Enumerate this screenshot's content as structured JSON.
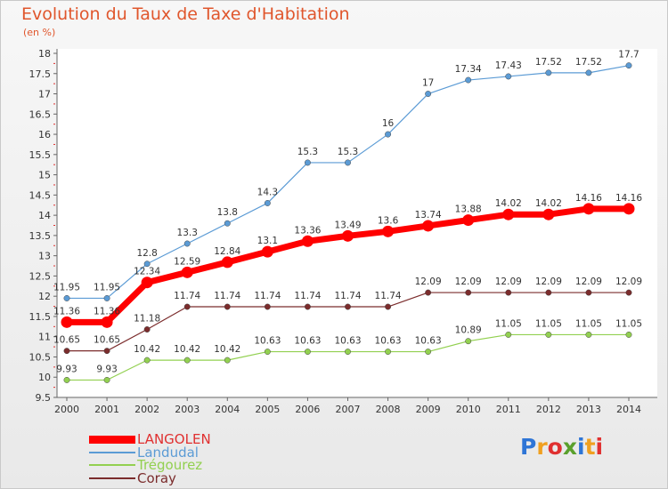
{
  "chart_data": {
    "type": "line",
    "title": "Evolution du Taux de Taxe d'Habitation",
    "subtitle": "(en %)",
    "x": [
      "2000",
      "2001",
      "2002",
      "2003",
      "2004",
      "2005",
      "2006",
      "2007",
      "2008",
      "2009",
      "2010",
      "2011",
      "2012",
      "2013",
      "2014"
    ],
    "ylim": [
      9.5,
      18
    ],
    "yticks": [
      "9.5",
      "10",
      "10.5",
      "11",
      "11.5",
      "12",
      "12.5",
      "13",
      "13.5",
      "14",
      "14.5",
      "15",
      "15.5",
      "16",
      "16.5",
      "17",
      "17.5",
      "18"
    ],
    "grid": false,
    "legend_position": "bottom-left",
    "series": [
      {
        "name": "LANGOLEN",
        "color": "#ff0000",
        "values": [
          11.36,
          11.36,
          12.34,
          12.59,
          12.84,
          13.1,
          13.36,
          13.49,
          13.6,
          13.74,
          13.88,
          14.02,
          14.02,
          14.16,
          14.16
        ],
        "labels": [
          "11.36",
          "11.36",
          "12.34",
          "12.59",
          "12.84",
          "13.1",
          "13.36",
          "13.49",
          "13.6",
          "13.74",
          "13.88",
          "14.02",
          "14.02",
          "14.16",
          "14.16"
        ]
      },
      {
        "name": "Landudal",
        "color": "#5b9bd5",
        "values": [
          11.95,
          11.95,
          12.8,
          13.3,
          13.8,
          14.3,
          15.3,
          15.3,
          16,
          17,
          17.34,
          17.43,
          17.52,
          17.52,
          17.7
        ],
        "labels": [
          "11.95",
          "11.95",
          "12.8",
          "13.3",
          "13.8",
          "14.3",
          "15.3",
          "15.3",
          "16",
          "17",
          "17.34",
          "17.43",
          "17.52",
          "17.52",
          "17.7"
        ]
      },
      {
        "name": "Trégourez",
        "color": "#92d050",
        "values": [
          9.93,
          9.93,
          10.42,
          10.42,
          10.42,
          10.63,
          10.63,
          10.63,
          10.63,
          10.63,
          10.89,
          11.05,
          11.05,
          11.05,
          11.05
        ],
        "labels": [
          "9.93",
          "9.93",
          "10.42",
          "10.42",
          "10.42",
          "10.63",
          "10.63",
          "10.63",
          "10.63",
          "10.63",
          "10.89",
          "11.05",
          "11.05",
          "11.05",
          "11.05"
        ]
      },
      {
        "name": "Coray",
        "color": "#7b2c2c",
        "values": [
          10.65,
          10.65,
          11.18,
          11.74,
          11.74,
          11.74,
          11.74,
          11.74,
          11.74,
          12.09,
          12.09,
          12.09,
          12.09,
          12.09,
          12.09
        ],
        "labels": [
          "10.65",
          "10.65",
          "11.18",
          "11.74",
          "11.74",
          "11.74",
          "11.74",
          "11.74",
          "11.74",
          "12.09",
          "12.09",
          "12.09",
          "12.09",
          "12.09",
          "12.09"
        ]
      }
    ]
  },
  "legend": {
    "items": [
      {
        "label": "LANGOLEN",
        "color": "#ff0000"
      },
      {
        "label": "Landudal",
        "color": "#5b9bd5"
      },
      {
        "label": "Trégourez",
        "color": "#92d050"
      },
      {
        "label": "Coray",
        "color": "#7b2c2c"
      }
    ]
  },
  "logo": {
    "text": "Proxiti",
    "letter_colors": [
      "#2e75d6",
      "#f0a020",
      "#e03030",
      "#5aa02c",
      "#2e75d6",
      "#f0a020",
      "#e03030"
    ]
  }
}
